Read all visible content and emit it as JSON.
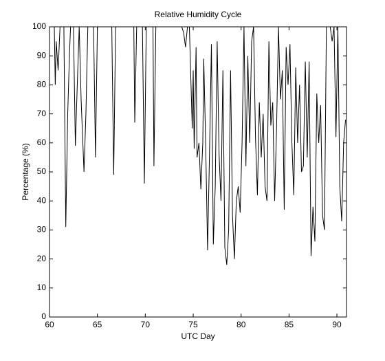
{
  "chart_data": {
    "type": "line",
    "title": "Relative Humidity Cycle",
    "xlabel": "UTC Day",
    "ylabel": "Percentage (%)",
    "x": [
      60.0,
      60.5,
      60.6,
      60.7,
      60.9,
      61.1,
      61.5,
      61.7,
      61.9,
      62.1,
      62.2,
      62.5,
      62.7,
      62.9,
      63.1,
      63.3,
      63.6,
      63.8,
      64.0,
      64.6,
      64.8,
      65.0,
      66.5,
      66.7,
      66.9,
      68.8,
      68.9,
      69.1,
      69.7,
      69.9,
      70.1,
      70.8,
      70.9,
      71.1,
      73.8,
      74.0,
      74.2,
      74.4,
      74.6,
      74.9,
      75.0,
      75.1,
      75.3,
      75.4,
      75.6,
      75.8,
      76.0,
      76.1,
      76.3,
      76.5,
      76.7,
      76.9,
      77.1,
      77.3,
      77.5,
      77.7,
      77.9,
      78.1,
      78.3,
      78.5,
      78.7,
      78.9,
      79.1,
      79.3,
      79.5,
      79.7,
      79.9,
      80.1,
      80.3,
      80.5,
      80.7,
      80.9,
      81.1,
      81.3,
      81.5,
      81.7,
      81.9,
      82.1,
      82.3,
      82.5,
      82.7,
      82.9,
      83.1,
      83.3,
      83.5,
      83.7,
      83.9,
      84.1,
      84.3,
      84.5,
      84.7,
      84.9,
      85.1,
      85.3,
      85.5,
      85.7,
      85.9,
      86.1,
      86.3,
      86.5,
      86.7,
      86.9,
      87.1,
      87.3,
      87.5,
      87.7,
      87.9,
      88.1,
      88.3,
      88.5,
      88.7,
      88.9,
      89.3,
      89.5,
      89.7,
      89.9,
      90.1,
      90.3,
      90.5,
      90.7,
      90.9
    ],
    "values": [
      100,
      100,
      80,
      95,
      85,
      100,
      100,
      31,
      70,
      92,
      100,
      100,
      59,
      80,
      100,
      75,
      50,
      70,
      100,
      100,
      55,
      100,
      100,
      49,
      100,
      100,
      67,
      100,
      100,
      46,
      100,
      100,
      52,
      100,
      100,
      98,
      93,
      100,
      100,
      65,
      85,
      58,
      93,
      55,
      60,
      44,
      60,
      89,
      60,
      23,
      56,
      94,
      25,
      45,
      95,
      56,
      40,
      85,
      24,
      18,
      30,
      85,
      35,
      20,
      40,
      45,
      36,
      60,
      100,
      52,
      90,
      60,
      95,
      100,
      62,
      42,
      74,
      55,
      70,
      45,
      40,
      95,
      66,
      74,
      40,
      65,
      100,
      75,
      85,
      37,
      93,
      80,
      94,
      60,
      42,
      86,
      60,
      80,
      50,
      52,
      88,
      55,
      88,
      21,
      38,
      26,
      77,
      60,
      73,
      35,
      30,
      100,
      100,
      95,
      100,
      62,
      100,
      45,
      33,
      60,
      68
    ],
    "color": "#000000",
    "xlim": [
      60,
      91
    ],
    "xticks": [
      60,
      65,
      70,
      75,
      80,
      85,
      90
    ],
    "ylim": [
      0,
      100
    ],
    "yticks": [
      0,
      10,
      20,
      30,
      40,
      50,
      60,
      70,
      80,
      90,
      100
    ]
  }
}
